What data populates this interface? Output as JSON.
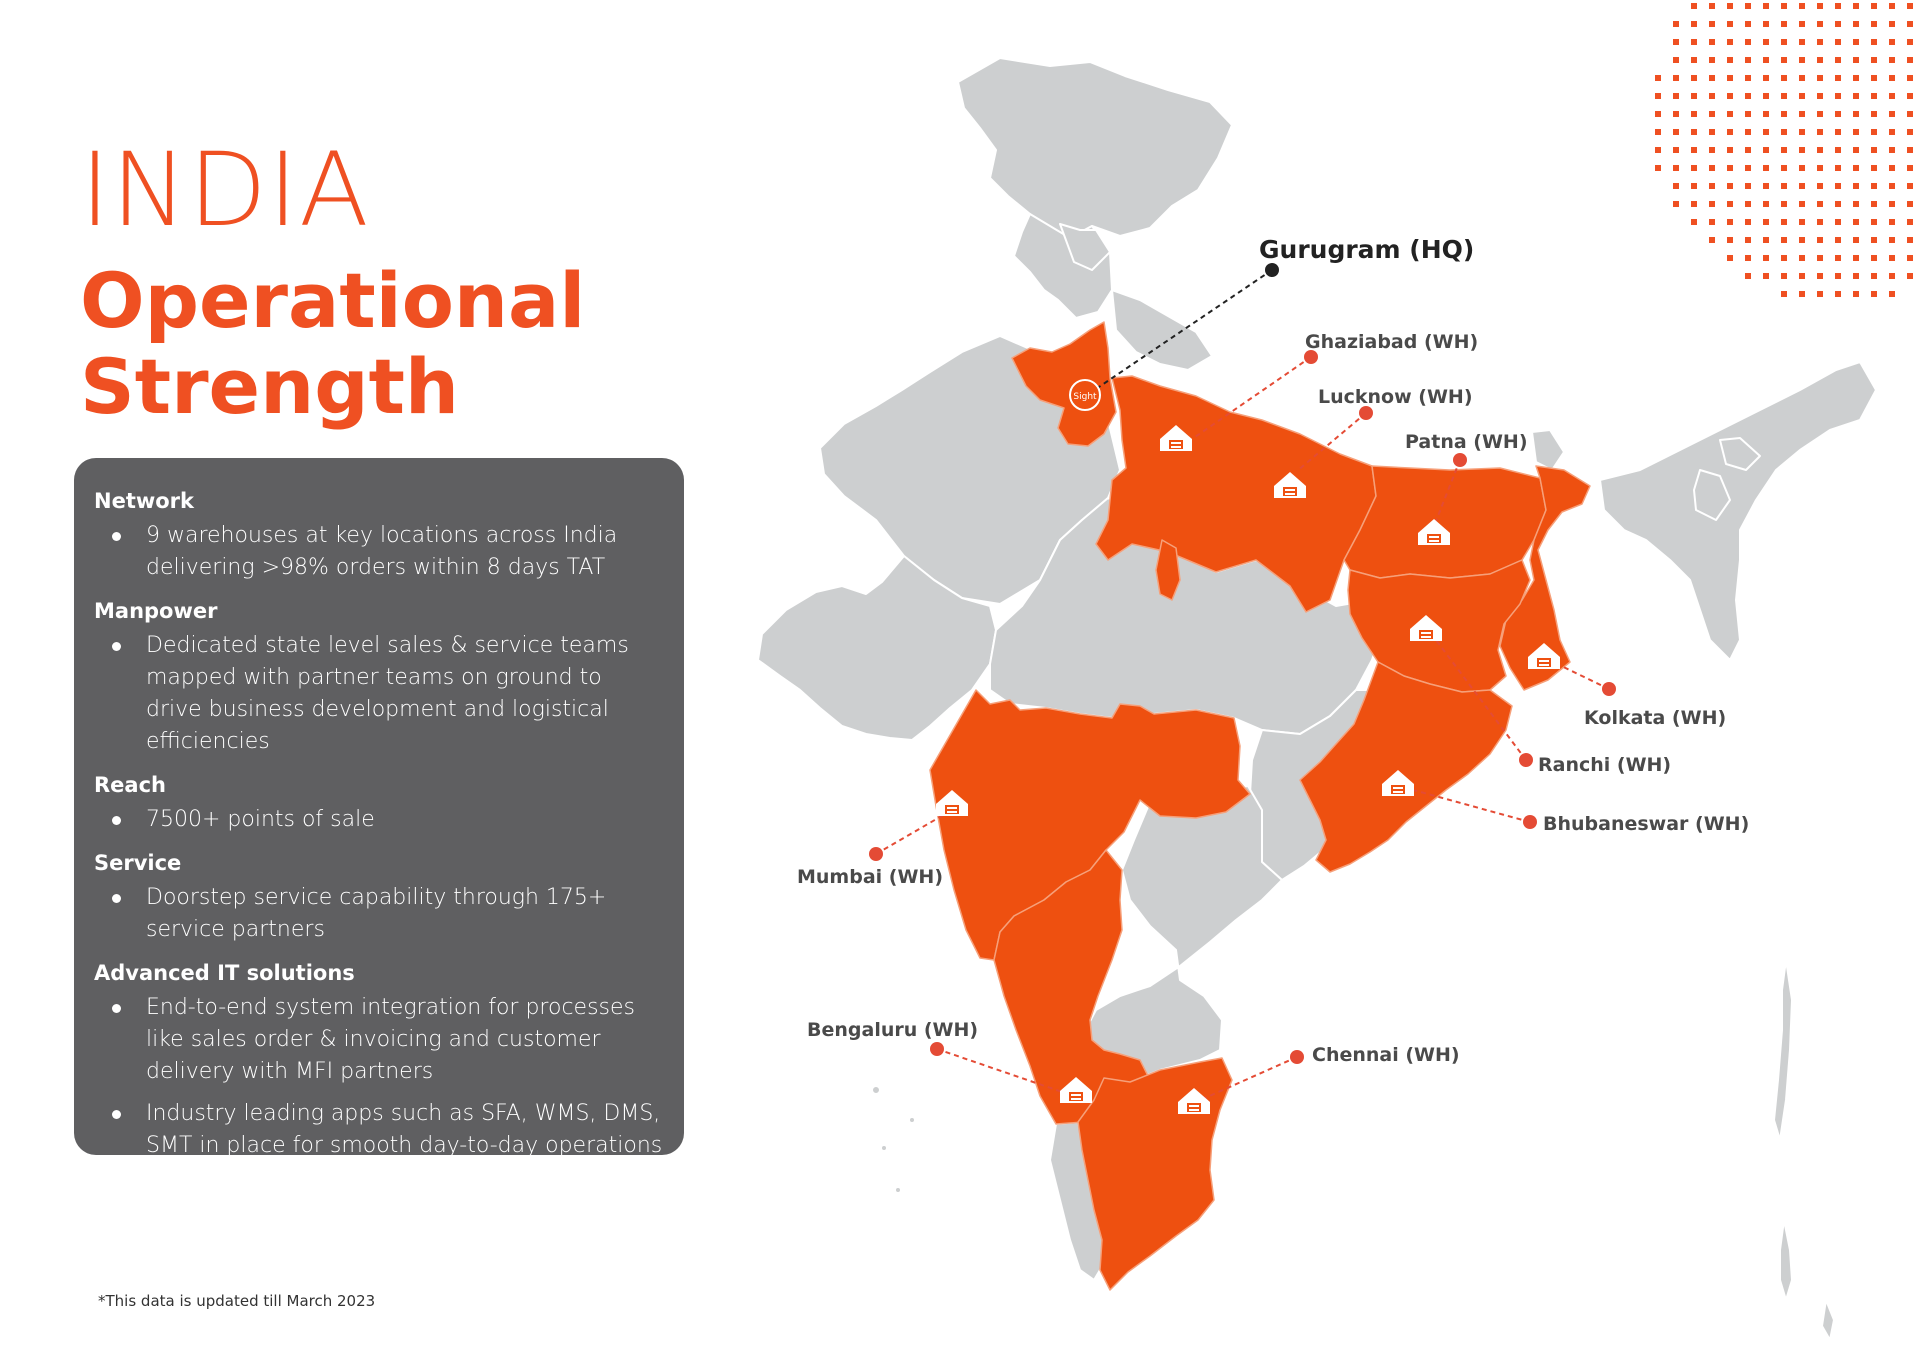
{
  "title": {
    "line1": "INDIA",
    "line2": "Operational Strength"
  },
  "sections": [
    {
      "heading": "Network",
      "bullets": [
        "9 warehouses at key locations across India delivering >98% orders within 8 days TAT"
      ]
    },
    {
      "heading": "Manpower",
      "bullets": [
        "Dedicated state level sales & service teams mapped with partner teams on ground to drive business development and logistical efficiencies"
      ]
    },
    {
      "heading": "Reach",
      "bullets": [
        "7500+ points of sale"
      ]
    },
    {
      "heading": "Service",
      "bullets": [
        "Doorstep service capability through 175+ service partners"
      ]
    },
    {
      "heading": "Advanced IT solutions",
      "bullets": [
        "End-to-end system integration for processes like sales order & invoicing and customer delivery with MFI partners",
        "Industry leading apps such as SFA, WMS, DMS, SMT in place for smooth day-to-day operations"
      ]
    }
  ],
  "footnote": "*This data is updated till March 2023",
  "map": {
    "hq_label": "Gurugram (HQ)",
    "hq_logo_text": "Sight",
    "warehouses": [
      "Ghaziabad (WH)",
      "Lucknow (WH)",
      "Patna (WH)",
      "Kolkata (WH)",
      "Ranchi (WH)",
      "Bhubaneswar (WH)",
      "Mumbai (WH)",
      "Bengaluru (WH)",
      "Chennai (WH)"
    ],
    "colors": {
      "accent": "#ef5022",
      "highlight_state": "#ee5010",
      "base_map": "#cdcfd0",
      "panel": "#5f5f61"
    },
    "icons": [
      "warehouse-icon",
      "hq-logo-icon",
      "dot-pattern"
    ]
  }
}
